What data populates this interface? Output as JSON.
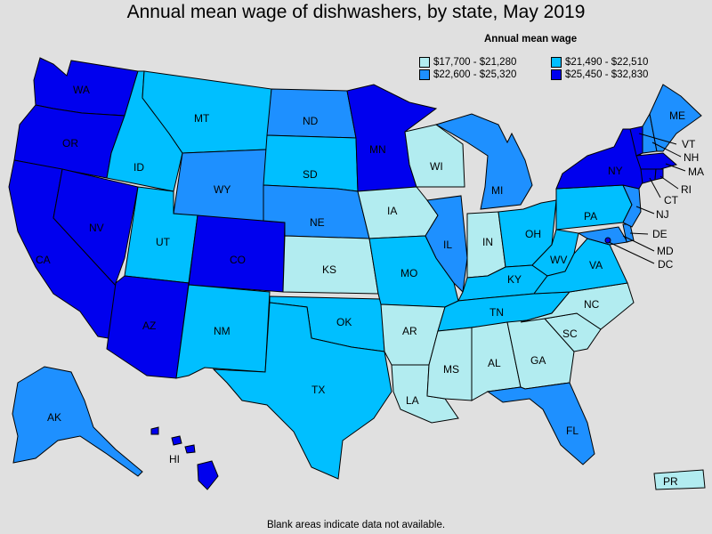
{
  "title": "Annual mean wage of dishwashers, by state, May 2019",
  "legend": {
    "title": "Annual mean wage",
    "items": [
      {
        "label": "$17,700 - $21,280",
        "color": "#b2ecf0"
      },
      {
        "label": "$21,490 - $22,510",
        "color": "#00bfff"
      },
      {
        "label": "$22,600 - $25,320",
        "color": "#1e90ff"
      },
      {
        "label": "$25,450 - $32,830",
        "color": "#0000ee"
      }
    ]
  },
  "footnote": "Blank areas indicate data not available.",
  "states": {
    "WA": {
      "tier": 3
    },
    "OR": {
      "tier": 3
    },
    "CA": {
      "tier": 3
    },
    "NV": {
      "tier": 3
    },
    "AZ": {
      "tier": 3
    },
    "CO": {
      "tier": 3
    },
    "MN": {
      "tier": 3
    },
    "NY": {
      "tier": 3
    },
    "MA": {
      "tier": 3
    },
    "CT": {
      "tier": 3
    },
    "RI": {
      "tier": 3
    },
    "VT": {
      "tier": 3
    },
    "NJ": {
      "tier": 2
    },
    "HI": {
      "tier": 3
    },
    "ID": {
      "tier": 1
    },
    "MT": {
      "tier": 1
    },
    "UT": {
      "tier": 1
    },
    "SD": {
      "tier": 1
    },
    "NM": {
      "tier": 1
    },
    "TX": {
      "tier": 1
    },
    "OK": {
      "tier": 1
    },
    "MO": {
      "tier": 1
    },
    "TN": {
      "tier": 1
    },
    "KY": {
      "tier": 1
    },
    "OH": {
      "tier": 1
    },
    "PA": {
      "tier": 1
    },
    "WV": {
      "tier": 1
    },
    "VA": {
      "tier": 1
    },
    "WY": {
      "tier": 2
    },
    "ND": {
      "tier": 2
    },
    "NE": {
      "tier": 2
    },
    "IL": {
      "tier": 2
    },
    "MI": {
      "tier": 2
    },
    "FL": {
      "tier": 2
    },
    "AK": {
      "tier": 2
    },
    "ME": {
      "tier": 2
    },
    "NH": {
      "tier": 2
    },
    "MD": {
      "tier": 2
    },
    "DE": {
      "tier": 2
    },
    "DC": {
      "tier": 3
    },
    "KS": {
      "tier": 0
    },
    "IA": {
      "tier": 0
    },
    "WI": {
      "tier": 0
    },
    "IN": {
      "tier": 0
    },
    "AR": {
      "tier": 0
    },
    "LA": {
      "tier": 0
    },
    "MS": {
      "tier": 0
    },
    "AL": {
      "tier": 0
    },
    "GA": {
      "tier": 0
    },
    "SC": {
      "tier": 0
    },
    "NC": {
      "tier": 0
    },
    "PR": {
      "tier": 0
    }
  }
}
